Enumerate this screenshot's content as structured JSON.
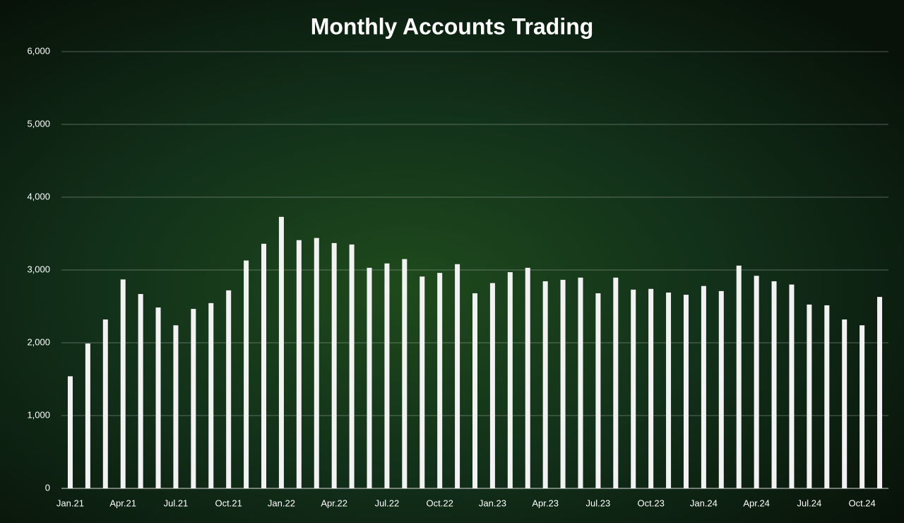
{
  "chart_data": {
    "type": "bar",
    "title": "Monthly Accounts Trading",
    "categories": [
      "Jan.21",
      null,
      null,
      "Apr.21",
      null,
      null,
      "Jul.21",
      null,
      null,
      "Oct.21",
      null,
      null,
      "Jan.22",
      null,
      null,
      "Apr.22",
      null,
      null,
      "Jul.22",
      null,
      null,
      "Oct.22",
      null,
      null,
      "Jan.23",
      null,
      null,
      "Apr.23",
      null,
      null,
      "Jul.23",
      null,
      null,
      "Oct.23",
      null,
      null,
      "Jan.24",
      null,
      null,
      "Apr.24",
      null,
      null,
      "Jul.24",
      null,
      null,
      "Oct.24",
      null
    ],
    "values": [
      1540,
      1990,
      2320,
      2870,
      2670,
      2485,
      2240,
      2465,
      2545,
      2720,
      3130,
      3360,
      3730,
      3410,
      3440,
      3370,
      3350,
      3030,
      3090,
      3150,
      2910,
      2960,
      3080,
      2680,
      2820,
      2970,
      3030,
      2845,
      2865,
      2895,
      2680,
      2895,
      2730,
      2740,
      2690,
      2660,
      2780,
      2710,
      3060,
      2920,
      2845,
      2800,
      2525,
      2515,
      2320,
      2240,
      2630
    ],
    "color": "#f2f2f2",
    "ylim": [
      0,
      6000
    ],
    "yticks": [
      0,
      {
        "value": 1000,
        "label": "1,000"
      },
      {
        "value": 2000,
        "label": "2,000"
      },
      {
        "value": 3000,
        "label": "3,000"
      },
      {
        "value": 4000,
        "label": "4,000"
      },
      {
        "value": 5000,
        "label": "5,000"
      },
      {
        "value": 6000,
        "label": "6,000"
      }
    ],
    "grid": true
  }
}
